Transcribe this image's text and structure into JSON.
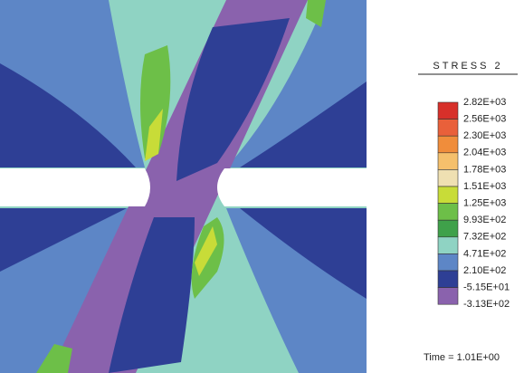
{
  "legend": {
    "title": "STRESS 2",
    "labels": [
      "2.82E+03",
      "2.56E+03",
      "2.30E+03",
      "2.04E+03",
      "1.78E+03",
      "1.51E+03",
      "1.25E+03",
      "9.93E+02",
      "7.32E+02",
      "4.71E+02",
      "2.10E+02",
      "-5.15E+01",
      "-3.13E+02"
    ],
    "colors": [
      "#d7302a",
      "#e9603a",
      "#f08d3b",
      "#f5c06c",
      "#efe0b2",
      "#c8dc38",
      "#6dbf48",
      "#3fa14a",
      "#8fd3c3",
      "#5d86c6",
      "#2e3f95",
      "#8a62ad"
    ]
  },
  "time": "Time = 1.01E+00"
}
